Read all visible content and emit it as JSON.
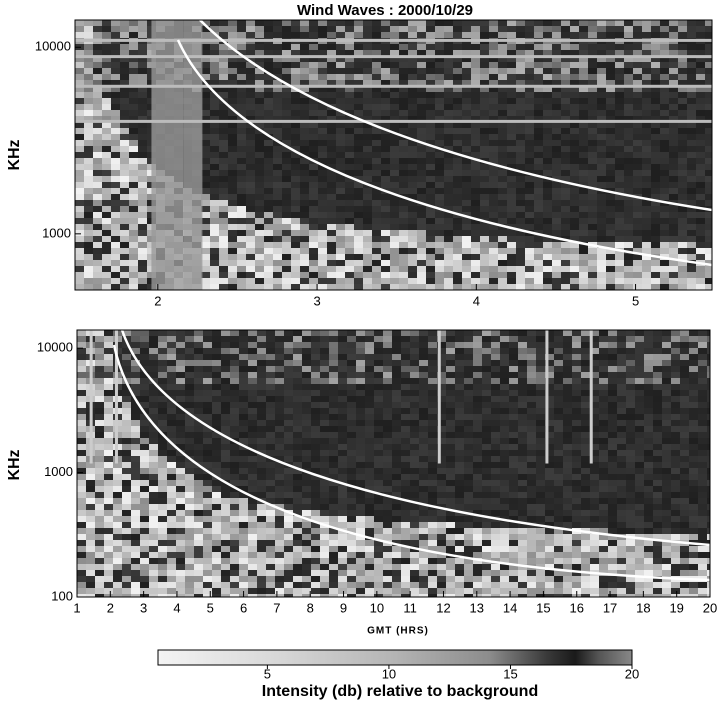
{
  "chart_data": [
    {
      "type": "spectrogram",
      "title": "Wind Waves : 2000/10/29",
      "ylabel": "KHz",
      "xlim": [
        1.48,
        5.48
      ],
      "xticks": [
        2,
        3,
        4,
        5
      ],
      "ylim": [
        500,
        14000
      ],
      "yticks": [
        1000,
        10000
      ],
      "y_log": true
    },
    {
      "type": "spectrogram",
      "ylabel": "KHz",
      "xlabel": "GMT (HRS)",
      "xlim": [
        1,
        20
      ],
      "xticks": [
        1,
        2,
        3,
        4,
        5,
        6,
        7,
        8,
        9,
        10,
        11,
        12,
        13,
        14,
        15,
        16,
        17,
        18,
        19,
        20
      ],
      "ylim": [
        100,
        14000
      ],
      "yticks": [
        100,
        1000,
        10000
      ],
      "y_log": true,
      "colorbar": {
        "label": "Intensity (db) relative to background",
        "lim": [
          0.5,
          20
        ],
        "ticks": [
          5,
          10,
          15,
          20
        ]
      }
    }
  ]
}
